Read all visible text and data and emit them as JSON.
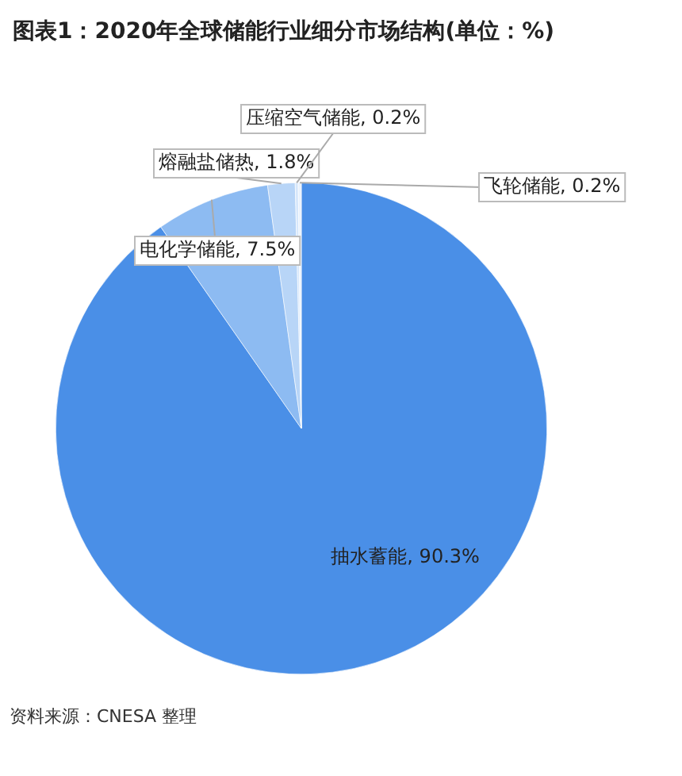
{
  "chart_data": {
    "type": "pie",
    "title": "图表1：2020年全球储能行业细分市场结构(单位：%)",
    "categories": [
      "抽水蓄能",
      "电化学储能",
      "熔融盐储热",
      "压缩空气储能",
      "飞轮储能"
    ],
    "values": [
      90.3,
      7.5,
      1.8,
      0.2,
      0.2
    ],
    "value_labels": [
      "90.3%",
      "7.5%",
      "1.8%",
      "0.2%",
      "0.2%"
    ],
    "colors": [
      "#4a8fe7",
      "#8dbbf2",
      "#b8d5f7",
      "#d6e7fb",
      "#e9f2fd"
    ],
    "legend": false,
    "annotations": [
      "资料来源：CNESA 整理"
    ]
  }
}
